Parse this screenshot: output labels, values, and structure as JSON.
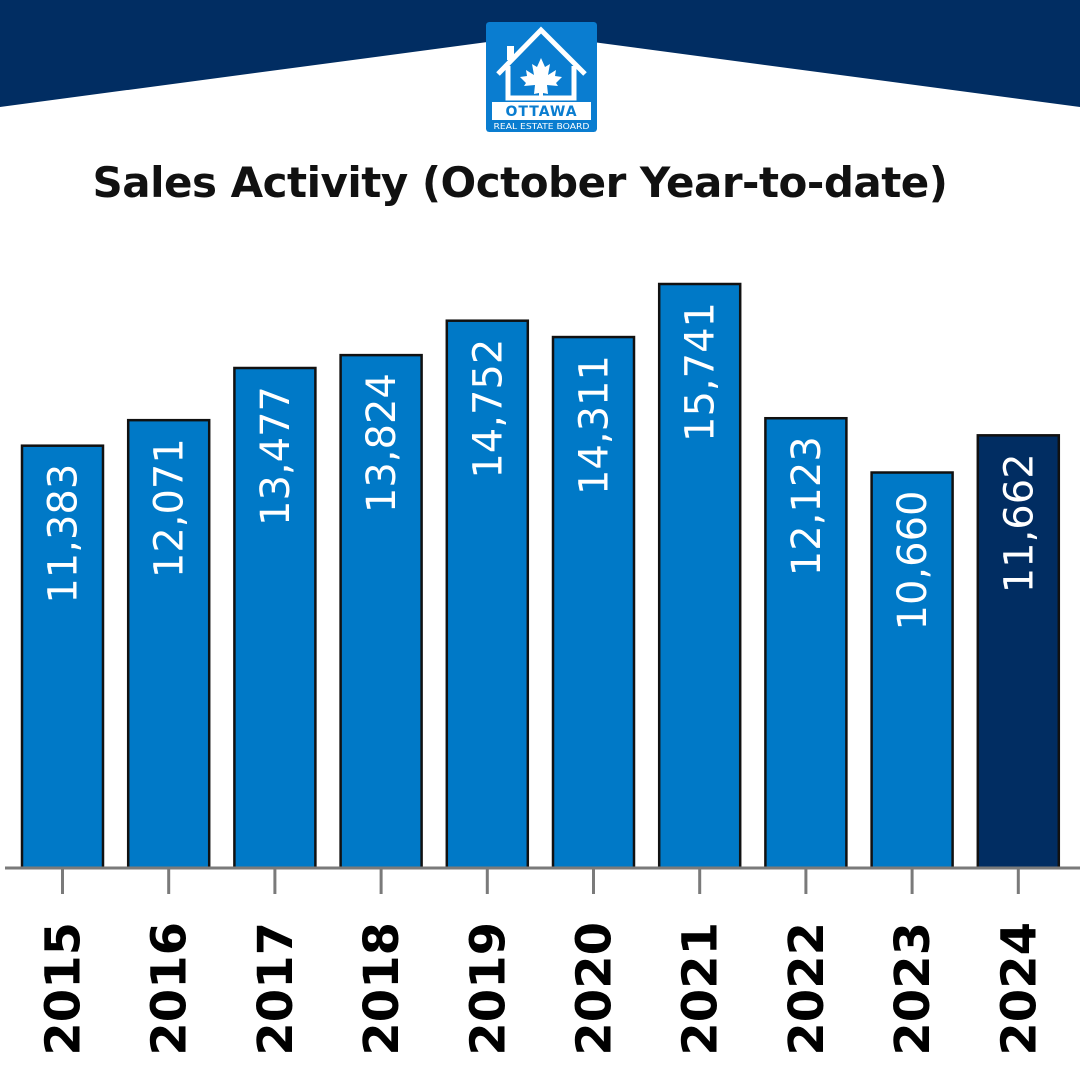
{
  "logo": {
    "name_line1": "OTTAWA",
    "name_line2": "REAL ESTATE BOARD",
    "icon": "maple-leaf-house-icon"
  },
  "colors": {
    "banner": "#012d62",
    "bar": "#0079c7",
    "bar_highlight": "#012d62",
    "logo_bg": "#0a7dd0"
  },
  "chart_data": {
    "type": "bar",
    "title": "Sales Activity (October Year-to-date)",
    "xlabel": "",
    "ylabel": "",
    "categories": [
      "2015",
      "2016",
      "2017",
      "2018",
      "2019",
      "2020",
      "2021",
      "2022",
      "2023",
      "2024"
    ],
    "values": [
      11383,
      12071,
      13477,
      13824,
      14752,
      14311,
      15741,
      12123,
      10660,
      11662
    ],
    "value_labels": [
      "11,383",
      "12,071",
      "13,477",
      "13,824",
      "14,752",
      "14,311",
      "15,741",
      "12,123",
      "10,660",
      "11,662"
    ],
    "highlight_category": "2024",
    "ylim": [
      0,
      15741
    ],
    "grid": false,
    "legend": "none"
  }
}
